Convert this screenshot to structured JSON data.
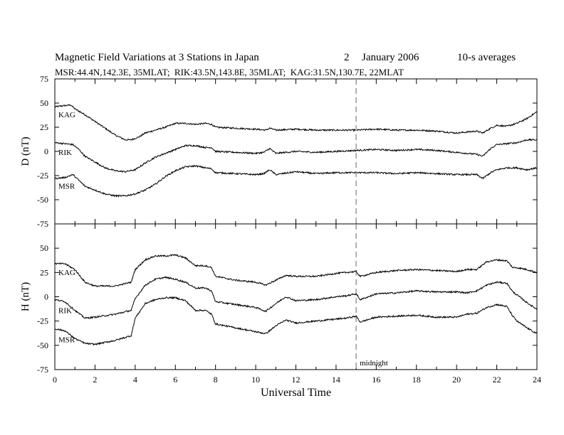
{
  "header": {
    "title": "Magnetic Field Variations at 3 Stations in Japan",
    "day": "2",
    "month_year": "January 2006",
    "averaging": "10-s averages",
    "stations_info": "MSR:44.4N,142.3E, 35MLAT;  RIK:43.5N,143.8E, 35MLAT;  KAG:31.5N,130.7E, 22MLAT"
  },
  "chart_data": [
    {
      "type": "line",
      "ylabel": "D (nT)",
      "ylim": [
        -75,
        75
      ],
      "yticks": [
        -75,
        -50,
        -25,
        0,
        25,
        50,
        75
      ],
      "xlim": [
        0,
        24
      ],
      "grid": false,
      "series": [
        {
          "name": "KAG",
          "x": [
            0,
            0.3,
            0.8,
            1,
            1.5,
            2,
            2.5,
            3,
            3.5,
            3.8,
            4.2,
            4.5,
            5,
            5.5,
            6,
            6.5,
            7,
            7.5,
            7.8,
            8,
            9,
            10,
            10.5,
            10.7,
            11,
            12,
            13,
            14,
            15,
            16,
            17,
            18,
            19,
            20,
            20.5,
            21,
            21.3,
            21.7,
            22,
            22.5,
            23,
            23.5,
            24
          ],
          "y": [
            46,
            47,
            48,
            44,
            38,
            31,
            24,
            17,
            12,
            12,
            15,
            19,
            22,
            25,
            29,
            29,
            28,
            29,
            28,
            25,
            24,
            23,
            22,
            24,
            22,
            23,
            22,
            22,
            22,
            23,
            22,
            22,
            21,
            19,
            20,
            21,
            19,
            24,
            27,
            26,
            29,
            34,
            41
          ]
        },
        {
          "name": "RIK",
          "x": [
            0,
            0.5,
            0.9,
            1.2,
            1.5,
            2,
            2.5,
            3,
            3.5,
            4,
            4.5,
            5,
            5.5,
            6,
            6.5,
            7,
            7.5,
            7.8,
            8,
            9,
            10,
            10.4,
            10.7,
            11,
            12,
            13,
            14,
            15,
            16,
            17,
            18,
            19,
            20,
            20.5,
            21,
            21.3,
            21.7,
            22,
            22.5,
            23,
            23.5,
            24
          ],
          "y": [
            9,
            8,
            7,
            2,
            -5,
            -11,
            -17,
            -20,
            -21,
            -19,
            -12,
            -6,
            -2,
            2,
            6,
            6,
            4,
            4,
            0,
            -1,
            -2,
            -1,
            3,
            -2,
            0,
            -1,
            0,
            1,
            2,
            1,
            2,
            1,
            -1,
            -2,
            -3,
            -5,
            3,
            7,
            8,
            9,
            12,
            12
          ]
        },
        {
          "name": "MSR",
          "x": [
            0,
            0.5,
            0.9,
            1.2,
            1.5,
            2,
            2.5,
            3,
            3.5,
            4,
            4.5,
            5,
            5.5,
            6,
            6.5,
            7,
            7.5,
            7.8,
            8,
            9,
            10,
            10.4,
            10.7,
            11,
            12,
            13,
            14,
            15,
            16,
            17,
            18,
            19,
            20,
            20.5,
            21,
            21.3,
            21.7,
            22,
            22.5,
            23,
            23.5,
            24
          ],
          "y": [
            -28,
            -27,
            -24,
            -30,
            -36,
            -40,
            -44,
            -46,
            -46,
            -44,
            -40,
            -34,
            -26,
            -20,
            -16,
            -15,
            -17,
            -18,
            -22,
            -23,
            -24,
            -23,
            -19,
            -24,
            -21,
            -23,
            -22,
            -22,
            -22,
            -23,
            -22,
            -23,
            -24,
            -24,
            -24,
            -28,
            -22,
            -19,
            -17,
            -17,
            -19,
            -17
          ]
        }
      ]
    },
    {
      "type": "line",
      "ylabel": "H (nT)",
      "xlabel": "Universal Time",
      "ylim": [
        -75,
        75
      ],
      "yticks": [
        -75,
        -50,
        -25,
        0,
        25,
        50
      ],
      "xlim": [
        0,
        24
      ],
      "xticks": [
        0,
        2,
        4,
        6,
        8,
        10,
        12,
        14,
        16,
        18,
        20,
        22,
        24
      ],
      "grid": false,
      "annotations": [
        {
          "x": 15,
          "text": "midnight",
          "style": "dashed-vertical"
        }
      ],
      "series": [
        {
          "name": "KAG",
          "x": [
            0,
            0.5,
            1,
            1.5,
            2,
            3,
            3.8,
            4,
            4.5,
            5,
            5.5,
            6,
            6.5,
            7,
            7.5,
            7.8,
            8,
            9,
            10,
            10.5,
            11,
            11.5,
            12,
            13,
            14,
            14.5,
            15,
            15.2,
            16,
            17,
            18,
            19,
            20,
            20.5,
            21,
            21.5,
            22,
            22.5,
            22.8,
            23,
            23.5,
            24
          ],
          "y": [
            34,
            34,
            28,
            15,
            11,
            11,
            15,
            28,
            38,
            42,
            42,
            43,
            40,
            32,
            32,
            30,
            21,
            17,
            15,
            12,
            17,
            22,
            21,
            21,
            24,
            25,
            26,
            21,
            25,
            27,
            28,
            27,
            26,
            28,
            28,
            36,
            38,
            37,
            30,
            30,
            28,
            25
          ]
        },
        {
          "name": "RIK",
          "x": [
            0,
            0.5,
            1,
            1.5,
            2,
            3,
            3.8,
            4,
            4.5,
            5,
            5.5,
            6,
            6.5,
            7,
            7.5,
            7.8,
            8,
            9,
            10,
            10.5,
            11,
            11.5,
            12,
            13,
            14,
            14.5,
            15,
            15.2,
            16,
            17,
            18,
            19,
            20,
            20.5,
            21,
            21.5,
            22,
            22.5,
            22.8,
            23,
            23.5,
            24
          ],
          "y": [
            -3,
            -5,
            -14,
            -22,
            -21,
            -18,
            -14,
            -2,
            12,
            18,
            20,
            18,
            15,
            9,
            9,
            6,
            -5,
            -8,
            -11,
            -15,
            -7,
            0,
            -4,
            -3,
            0,
            1,
            3,
            -3,
            3,
            4,
            6,
            5,
            5,
            4,
            6,
            12,
            15,
            14,
            5,
            2,
            -6,
            -13
          ]
        },
        {
          "name": "MSR",
          "x": [
            0,
            0.5,
            1,
            1.5,
            2,
            3,
            3.8,
            4,
            4.5,
            5,
            5.5,
            6,
            6.5,
            7,
            7.5,
            7.8,
            8,
            9,
            10,
            10.5,
            11,
            11.5,
            12,
            13,
            14,
            14.5,
            15,
            15.2,
            16,
            17,
            18,
            19,
            20,
            20.5,
            21,
            21.5,
            22,
            22.5,
            22.8,
            23,
            23.5,
            24
          ],
          "y": [
            -33,
            -35,
            -43,
            -48,
            -49,
            -45,
            -40,
            -22,
            -7,
            -3,
            -1,
            -1,
            -4,
            -14,
            -14,
            -18,
            -28,
            -32,
            -36,
            -38,
            -30,
            -24,
            -27,
            -25,
            -23,
            -22,
            -20,
            -26,
            -21,
            -20,
            -19,
            -21,
            -21,
            -18,
            -17,
            -11,
            -8,
            -10,
            -20,
            -25,
            -32,
            -38
          ]
        }
      ]
    }
  ]
}
